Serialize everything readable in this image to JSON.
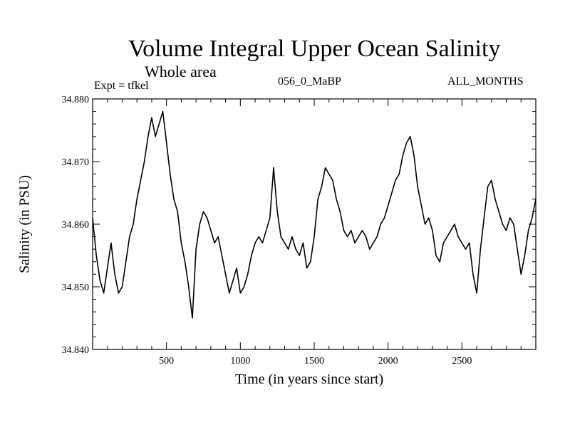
{
  "header": {
    "title": "Volume Integral Upper Ocean Salinity",
    "subtitle": "Whole area",
    "expt": "Expt = tfkel",
    "run": "056_0_MaBP",
    "months": "ALL_MONTHS"
  },
  "chart_data": {
    "type": "line",
    "title": "Volume Integral Upper Ocean Salinity",
    "subtitle": "Whole area",
    "xlabel": "Time (in years since start)",
    "ylabel": "Salinity (in PSU)",
    "xlim": [
      0,
      3000
    ],
    "ylim": [
      34.84,
      34.88
    ],
    "xticks": [
      500,
      1000,
      1500,
      2000,
      2500
    ],
    "xtick_labels": [
      "500",
      "1000",
      "1500",
      "2000",
      "2500"
    ],
    "yticks": [
      34.84,
      34.85,
      34.86,
      34.87,
      34.88
    ],
    "ytick_labels": [
      "34.840",
      "34.850",
      "34.860",
      "34.870",
      "34.880"
    ],
    "grid": false,
    "series": [
      {
        "color": "#000000",
        "x": [
          0,
          25,
          50,
          75,
          100,
          125,
          150,
          175,
          200,
          225,
          250,
          275,
          300,
          325,
          350,
          375,
          400,
          425,
          450,
          475,
          500,
          525,
          550,
          575,
          600,
          625,
          650,
          675,
          700,
          725,
          750,
          775,
          800,
          825,
          850,
          875,
          900,
          925,
          950,
          975,
          1000,
          1025,
          1050,
          1075,
          1100,
          1125,
          1150,
          1175,
          1200,
          1225,
          1250,
          1275,
          1300,
          1325,
          1350,
          1375,
          1400,
          1425,
          1450,
          1475,
          1500,
          1525,
          1550,
          1575,
          1600,
          1625,
          1650,
          1675,
          1700,
          1725,
          1750,
          1775,
          1800,
          1825,
          1850,
          1875,
          1900,
          1925,
          1950,
          1975,
          2000,
          2025,
          2050,
          2075,
          2100,
          2125,
          2150,
          2175,
          2200,
          2225,
          2250,
          2275,
          2300,
          2325,
          2350,
          2375,
          2400,
          2425,
          2450,
          2475,
          2500,
          2525,
          2550,
          2575,
          2600,
          2625,
          2650,
          2675,
          2700,
          2725,
          2750,
          2775,
          2800,
          2825,
          2850,
          2875,
          2900,
          2925,
          2950,
          2975,
          3000
        ],
        "values": [
          34.861,
          34.855,
          34.851,
          34.849,
          34.853,
          34.857,
          34.852,
          34.849,
          34.85,
          34.854,
          34.858,
          34.86,
          34.864,
          34.867,
          34.87,
          34.874,
          34.877,
          34.874,
          34.876,
          34.878,
          34.873,
          34.868,
          34.864,
          34.862,
          34.857,
          34.854,
          34.85,
          34.845,
          34.856,
          34.86,
          34.862,
          34.861,
          34.859,
          34.857,
          34.858,
          34.855,
          34.852,
          34.849,
          34.851,
          34.853,
          34.849,
          34.85,
          34.852,
          34.855,
          34.857,
          34.858,
          34.857,
          34.859,
          34.861,
          34.869,
          34.862,
          34.858,
          34.857,
          34.856,
          34.858,
          34.856,
          34.855,
          34.857,
          34.853,
          34.854,
          34.858,
          34.864,
          34.866,
          34.869,
          34.868,
          34.867,
          34.864,
          34.862,
          34.859,
          34.858,
          34.859,
          34.857,
          34.858,
          34.859,
          34.858,
          34.856,
          34.857,
          34.858,
          34.86,
          34.861,
          34.863,
          34.865,
          34.867,
          34.868,
          34.871,
          34.873,
          34.874,
          34.871,
          34.866,
          34.863,
          34.86,
          34.861,
          34.859,
          34.855,
          34.854,
          34.857,
          34.858,
          34.859,
          34.86,
          34.858,
          34.857,
          34.856,
          34.857,
          34.852,
          34.849,
          34.856,
          34.861,
          34.866,
          34.867,
          34.864,
          34.862,
          34.86,
          34.859,
          34.861,
          34.86,
          34.856,
          34.852,
          34.855,
          34.859,
          34.861,
          34.864
        ]
      }
    ]
  }
}
